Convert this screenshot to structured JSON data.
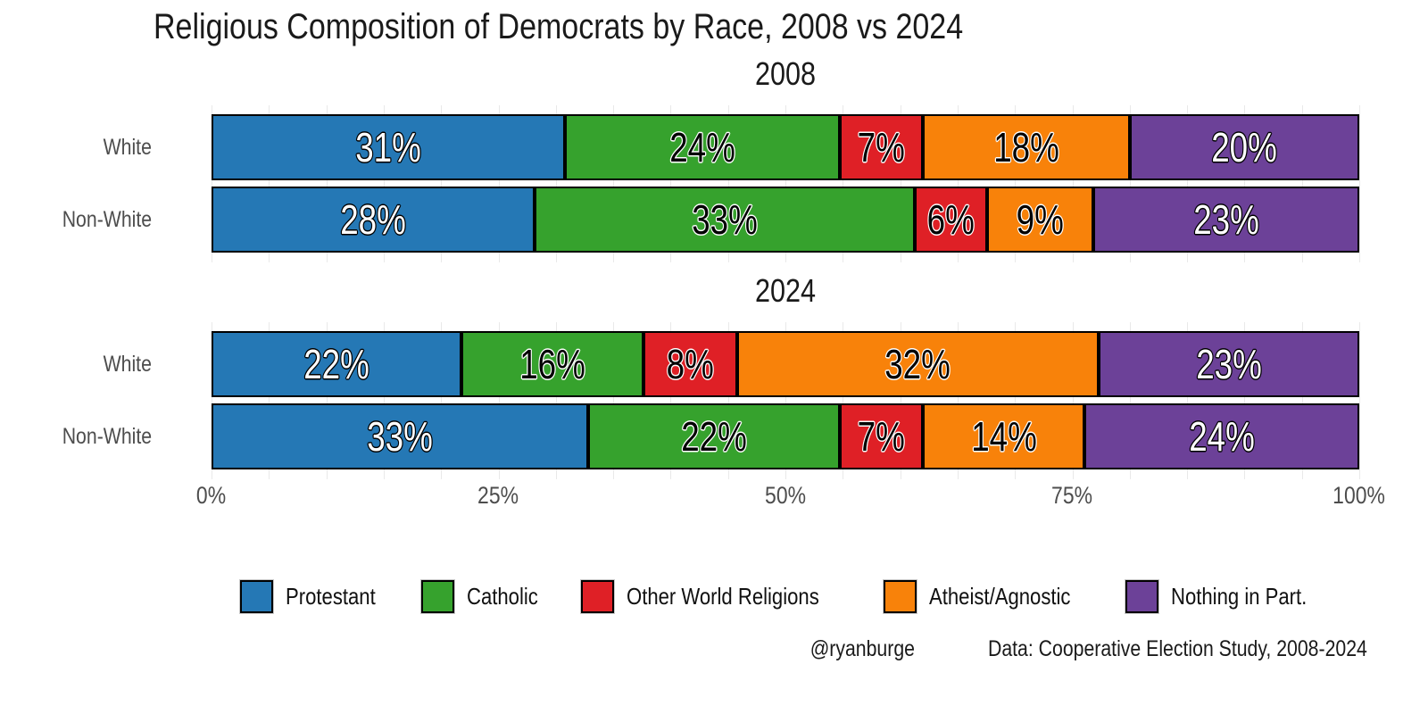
{
  "title": "Religious Composition of Democrats by Race, 2008 vs 2024",
  "caption": {
    "handle": "@ryanburge",
    "source": "Data: Cooperative Election Study, 2008-2024"
  },
  "x_axis": {
    "tick_labels": [
      "0%",
      "25%",
      "50%",
      "75%",
      "100%"
    ]
  },
  "legend": {
    "items": [
      {
        "label": "Protestant",
        "color": "#2578b5"
      },
      {
        "label": "Catholic",
        "color": "#36a22d"
      },
      {
        "label": "Other World Religions",
        "color": "#df2026"
      },
      {
        "label": "Atheist/Agnostic",
        "color": "#f8820a"
      },
      {
        "label": "Nothing in Part.",
        "color": "#6c4198"
      }
    ]
  },
  "chart_data": {
    "type": "bar",
    "subtype": "horizontal-stacked-100pct",
    "title": "Religious Composition of Democrats by Race, 2008 vs 2024",
    "categories": [
      "Protestant",
      "Catholic",
      "Other World Religions",
      "Atheist/Agnostic",
      "Nothing in Part."
    ],
    "colors": [
      "#2578b5",
      "#36a22d",
      "#df2026",
      "#f8820a",
      "#6c4198"
    ],
    "value_label_text_colors": [
      "#ffffff",
      "#000000",
      "#000000",
      "#000000",
      "#ffffff"
    ],
    "value_suffix": "%",
    "panels": [
      {
        "title": "2008",
        "rows": [
          {
            "label": "White",
            "values": [
              31,
              24,
              7,
              18,
              20
            ]
          },
          {
            "label": "Non-White",
            "values": [
              28,
              33,
              6,
              9,
              23
            ]
          }
        ]
      },
      {
        "title": "2024",
        "rows": [
          {
            "label": "White",
            "values": [
              22,
              16,
              8,
              32,
              23
            ]
          },
          {
            "label": "Non-White",
            "values": [
              33,
              22,
              7,
              14,
              24
            ]
          }
        ]
      }
    ],
    "xlim": [
      0,
      100
    ],
    "x_ticks": [
      "0%",
      "25%",
      "50%",
      "75%",
      "100%"
    ],
    "grid": "vertical-light-gray",
    "legend_position": "bottom",
    "caption": [
      "@ryanburge",
      "Data: Cooperative Election Study, 2008-2024"
    ]
  }
}
